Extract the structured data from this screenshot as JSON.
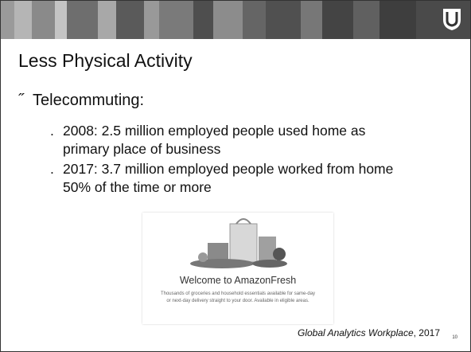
{
  "title": "Less Physical Activity",
  "bullets": [
    {
      "marker": "˝",
      "text": "Telecommuting:",
      "sub": [
        {
          "marker": ".",
          "text": "2008: 2.5 million employed people used home as primary place of business"
        },
        {
          "marker": ".",
          "text": "2017: 3.7 million employed people worked from home 50% of the time or more"
        }
      ]
    }
  ],
  "image": {
    "heading": "Welcome to AmazonFresh",
    "description": "Thousands of groceries and household essentials available for same-day or next-day delivery straight to your door. Available in eligible areas."
  },
  "citation": {
    "source": "Global Analytics Workplace",
    "year": ", 2017"
  },
  "page_number": "10"
}
